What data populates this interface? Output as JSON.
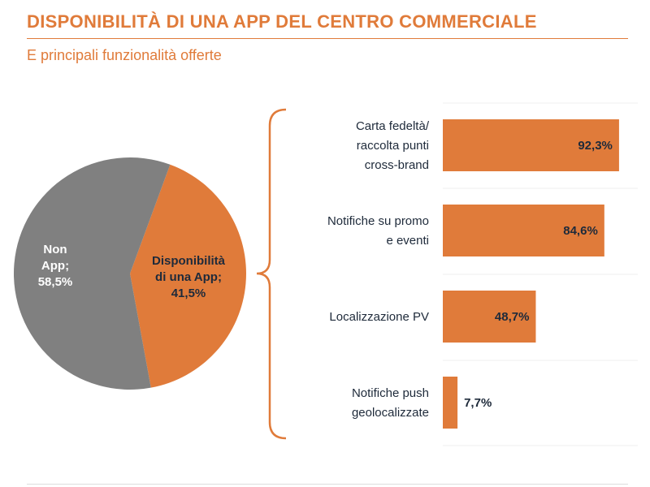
{
  "header": {
    "title": "DISPONIBILITÀ DI UNA APP DEL CENTRO COMMERCIALE",
    "subtitle": "E principali funzionalità offerte"
  },
  "colors": {
    "accent": "#e07b3a",
    "grey": "#808080",
    "dark_text": "#1e2a3a",
    "white_text": "#ffffff"
  },
  "chart_data": [
    {
      "type": "pie",
      "title": "",
      "slices": [
        {
          "label_lines": [
            "Disponibilità",
            "di una App;",
            "41,5%"
          ],
          "value": 41.5,
          "color": "#e07b3a"
        },
        {
          "label_lines": [
            "Non",
            "App;",
            "58,5%"
          ],
          "value": 58.5,
          "color": "#808080"
        }
      ]
    },
    {
      "type": "bar",
      "orientation": "horizontal",
      "title": "",
      "xlim": [
        0,
        100
      ],
      "categories": [
        [
          "Carta fedeltà/",
          "raccolta punti",
          "cross-brand"
        ],
        [
          "Notifiche su promo",
          "e eventi"
        ],
        [
          "Localizzazione PV"
        ],
        [
          "Notifiche push",
          "geolocalizzate"
        ]
      ],
      "values": [
        92.3,
        84.6,
        48.7,
        7.7
      ],
      "value_labels": [
        "92,3%",
        "84,6%",
        "48,7%",
        "7,7%"
      ],
      "color": "#e07b3a"
    }
  ]
}
